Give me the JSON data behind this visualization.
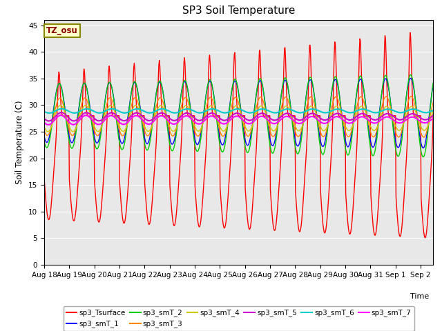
{
  "title": "SP3 Soil Temperature",
  "ylabel": "Soil Temperature (C)",
  "xlabel": "Time",
  "tz_label": "TZ_osu",
  "ylim": [
    0,
    46
  ],
  "yticks": [
    0,
    5,
    10,
    15,
    20,
    25,
    30,
    35,
    40,
    45
  ],
  "x_tick_labels": [
    "Aug 18",
    "Aug 19",
    "Aug 20",
    "Aug 21",
    "Aug 22",
    "Aug 23",
    "Aug 24",
    "Aug 25",
    "Aug 26",
    "Aug 27",
    "Aug 28",
    "Aug 29",
    "Aug 30",
    "Aug 31",
    "Sep 1",
    "Sep 2"
  ],
  "series_colors": {
    "sp3_Tsurface": "#ff0000",
    "sp3_smT_1": "#0000ff",
    "sp3_smT_2": "#00cc00",
    "sp3_smT_3": "#ff8800",
    "sp3_smT_4": "#cccc00",
    "sp3_smT_5": "#cc00cc",
    "sp3_smT_6": "#00cccc",
    "sp3_smT_7": "#ff00ff"
  },
  "legend_entries": [
    "sp3_Tsurface",
    "sp3_smT_1",
    "sp3_smT_2",
    "sp3_smT_3",
    "sp3_smT_4",
    "sp3_smT_5",
    "sp3_smT_6",
    "sp3_smT_7"
  ],
  "bg_color": "#e8e8e8",
  "n_days": 15.5,
  "n_points_per_day": 48
}
